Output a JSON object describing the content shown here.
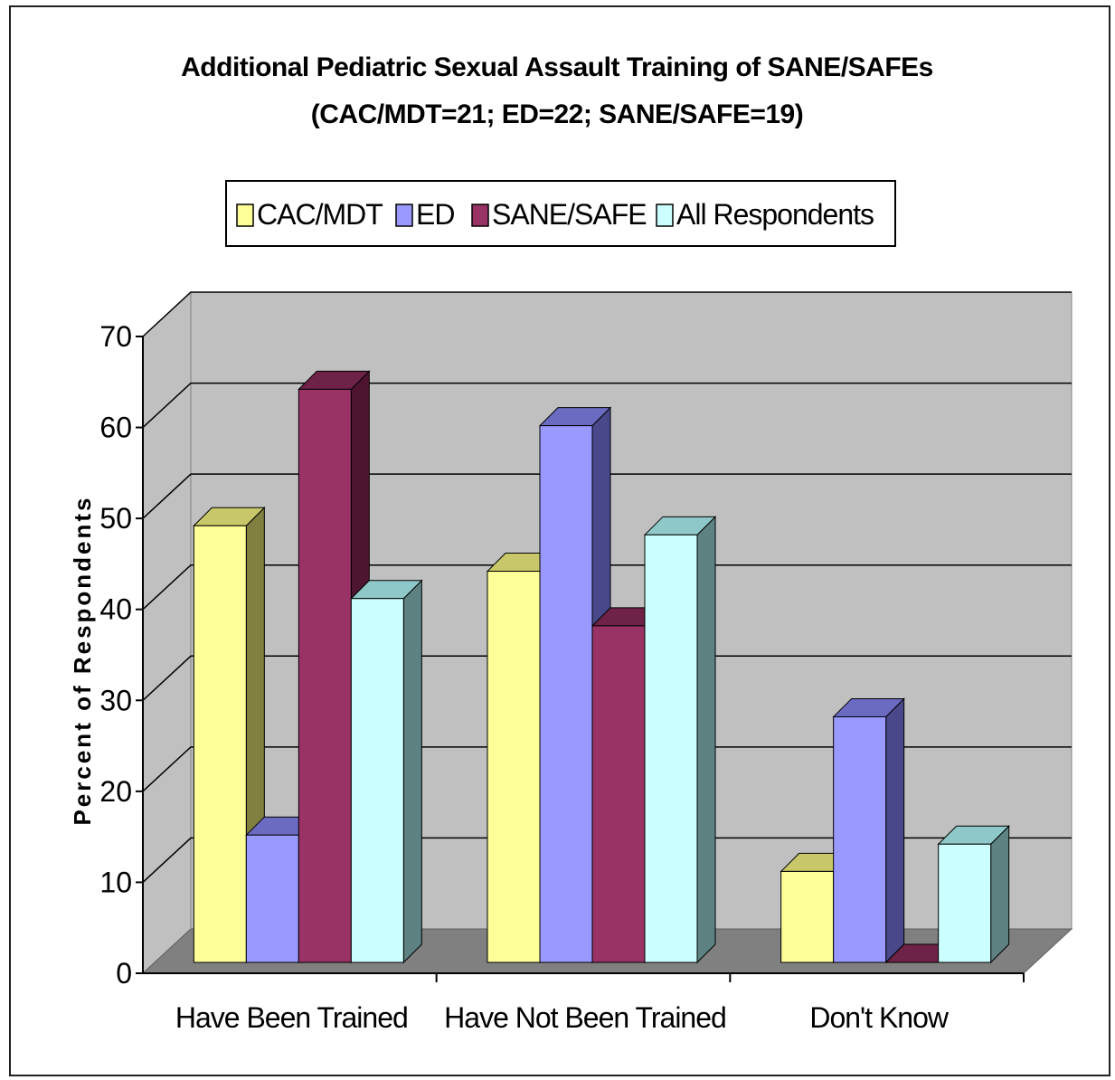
{
  "chart_data": {
    "type": "bar",
    "style": "3d-clustered-column",
    "title": "Additional Pediatric Sexual Assault Training of SANE/SAFEs",
    "subtitle": "(CAC/MDT=21; ED=22; SANE/SAFE=19)",
    "xlabel": "",
    "ylabel": "Percent of Respondents",
    "ylim": [
      0,
      70
    ],
    "yticks": [
      "0",
      "10",
      "20",
      "30",
      "40",
      "50",
      "60",
      "70"
    ],
    "grid": true,
    "legend_position": "top",
    "categories": [
      "Have Been Trained",
      "Have Not Been Trained",
      "Don't Know"
    ],
    "series": [
      {
        "name": "CAC/MDT",
        "values": [
          48,
          43,
          10
        ],
        "color": "#FFFF99",
        "top_color": "#C8C86A",
        "side_color": "#808040"
      },
      {
        "name": "ED",
        "values": [
          14,
          59,
          27
        ],
        "color": "#9999FF",
        "top_color": "#6B6BC2",
        "side_color": "#48488A"
      },
      {
        "name": "SANE/SAFE",
        "values": [
          63,
          37,
          0
        ],
        "color": "#993366",
        "top_color": "#6E2247",
        "side_color": "#4D1530"
      },
      {
        "name": "All Respondents",
        "values": [
          40,
          47,
          13
        ],
        "color": "#CCFFFF",
        "top_color": "#8FC8C8",
        "side_color": "#5E8282"
      }
    ],
    "colors": {
      "back_wall": "#C0C0C0",
      "floor": "#808080",
      "gridline": "#000000"
    }
  }
}
